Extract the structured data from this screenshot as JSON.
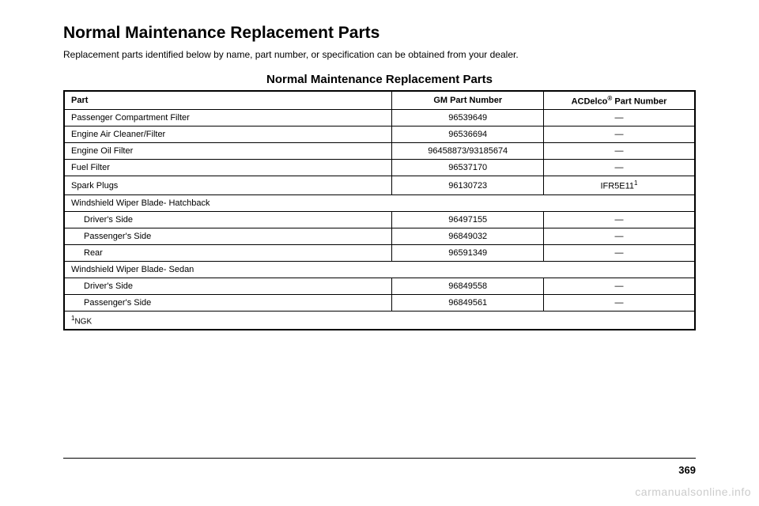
{
  "title": "Normal Maintenance Replacement Parts",
  "intro": "Replacement parts identified below by name, part number, or specification can be obtained from your dealer.",
  "tableTitle": "Normal Maintenance Replacement Parts",
  "headers": {
    "part": "Part",
    "gm": "GM Part Number",
    "ac": "ACDelco",
    "acSuffix": " Part Number"
  },
  "rows": [
    {
      "part": "Passenger Compartment Filter",
      "gm": "96539649",
      "ac": "—"
    },
    {
      "part": "Engine Air Cleaner/Filter",
      "gm": "96536694",
      "ac": "—"
    },
    {
      "part": "Engine Oil Filter",
      "gm": "96458873/93185674",
      "ac": "—"
    },
    {
      "part": "Fuel Filter",
      "gm": "96537170",
      "ac": "—"
    },
    {
      "part": "Spark Plugs",
      "gm": "96130723",
      "ac": "IFR5E11",
      "acSup": "1"
    }
  ],
  "section1": "Windshield Wiper Blade- Hatchback",
  "section1Rows": [
    {
      "part": "Driver's Side",
      "gm": "96497155",
      "ac": "—"
    },
    {
      "part": "Passenger's Side",
      "gm": "96849032",
      "ac": "—"
    },
    {
      "part": "Rear",
      "gm": "96591349",
      "ac": "—"
    }
  ],
  "section2": "Windshield Wiper Blade- Sedan",
  "section2Rows": [
    {
      "part": "Driver's Side",
      "gm": "96849558",
      "ac": "—"
    },
    {
      "part": "Passenger's Side",
      "gm": "96849561",
      "ac": "—"
    }
  ],
  "footnote": "NGK",
  "footnoteSup": "1",
  "pageNumber": "369",
  "watermark": "carmanualsonline.info"
}
